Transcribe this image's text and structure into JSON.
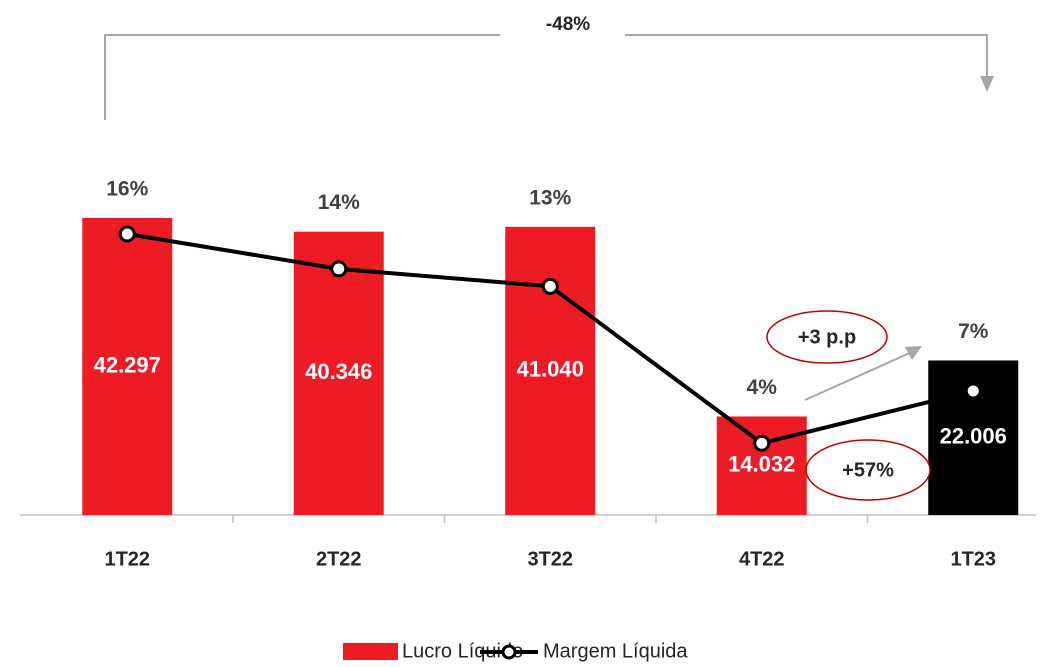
{
  "chart_data": {
    "type": "bar-line",
    "categories": [
      "1T22",
      "2T22",
      "3T22",
      "4T22",
      "1T23"
    ],
    "series": [
      {
        "name": "Lucro Líquido",
        "color": "#ed1c24",
        "colors": [
          "#ed1c24",
          "#ed1c24",
          "#ed1c24",
          "#ed1c24",
          "#000000"
        ],
        "values": [
          42297,
          40346,
          41040,
          14032,
          22006
        ],
        "value_labels": [
          "42.297",
          "40.346",
          "41.040",
          "14.032",
          "22.006"
        ]
      },
      {
        "name": "Margem Líquida",
        "color": "#000000",
        "axis": "y2",
        "values": [
          16,
          14,
          13,
          4,
          7
        ],
        "value_labels": [
          "16%",
          "14%",
          "13%",
          "4%",
          "7%"
        ]
      }
    ],
    "annotations": [
      "-48%",
      "+3 p.p",
      "+57%"
    ]
  }
}
